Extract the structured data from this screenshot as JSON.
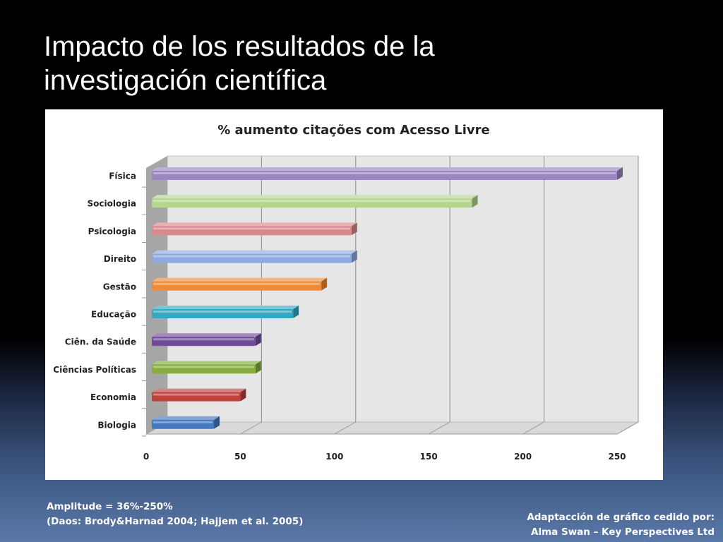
{
  "slide": {
    "title_line1": "Impacto de los resultados de la",
    "title_line2": "investigación científica",
    "footnote_left_line1": "Amplitude = 36%-250%",
    "footnote_left_line2": "(Daos: Brody&Harnad 2004; Hajjem et al. 2005)",
    "footnote_right_line1": "Adaptacción de gráfico cedido por:",
    "footnote_right_line2": "Alma Swan – Key Perspectives Ltd"
  },
  "chart_data": {
    "type": "bar",
    "orientation": "horizontal",
    "style": "3d",
    "title": "% aumento citações com Acesso Livre",
    "categories": [
      "Física",
      "Sociologia",
      "Psicologia",
      "Direito",
      "Gestão",
      "Educação",
      "Ciên. da Saúde",
      "Ciências Políticas",
      "Economia",
      "Biologia"
    ],
    "values": [
      250,
      173,
      109,
      109,
      93,
      78,
      58,
      58,
      50,
      36
    ],
    "colors": [
      "#9b85c3",
      "#b5d68c",
      "#d9898a",
      "#8eaadf",
      "#f08a34",
      "#35a7c4",
      "#6e4c98",
      "#86ad3d",
      "#c0403c",
      "#4478c0"
    ],
    "x_ticks": [
      0,
      50,
      100,
      150,
      200,
      250
    ],
    "xlim": [
      0,
      250
    ],
    "grid": true,
    "legend": "none"
  }
}
